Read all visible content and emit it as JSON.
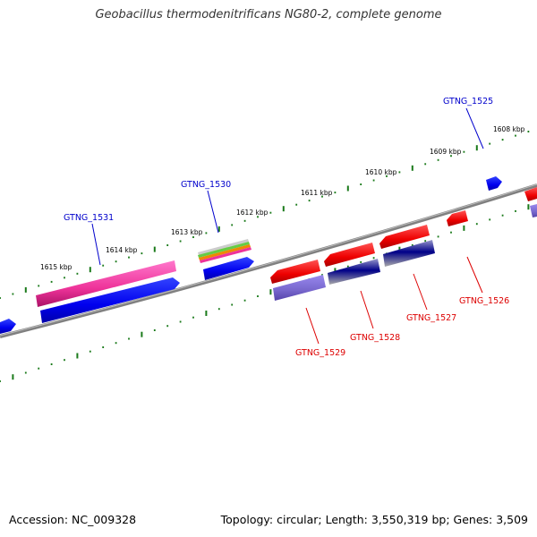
{
  "title": "Geobacillus thermodenitrificans NG80-2, complete genome",
  "footer": {
    "accession": "Accession: NC_009328",
    "summary": "Topology: circular; Length: 3,550,319 bp; Genes: 3,509"
  },
  "kbp_ticks": [
    "1615 kbp",
    "1614 kbp",
    "1613 kbp",
    "1612 kbp",
    "1611 kbp",
    "1610 kbp",
    "1609 kbp",
    "1608 kbp"
  ],
  "genes_forward": [
    "GTNG_1531",
    "GTNG_1530",
    "GTNG_1525"
  ],
  "genes_reverse": [
    "GTNG_1529",
    "GTNG_1528",
    "GTNG_1527",
    "GTNG_1526"
  ],
  "colors": {
    "backbone": "#808080",
    "tick": "#1a7a1a",
    "forward_label": "#0000cc",
    "reverse_label": "#dd0000",
    "forward_gene": "#0000ee",
    "reverse_gene": "#ee0000",
    "pink_gene": "#ee3399",
    "purple_gene": "#7766cc"
  }
}
